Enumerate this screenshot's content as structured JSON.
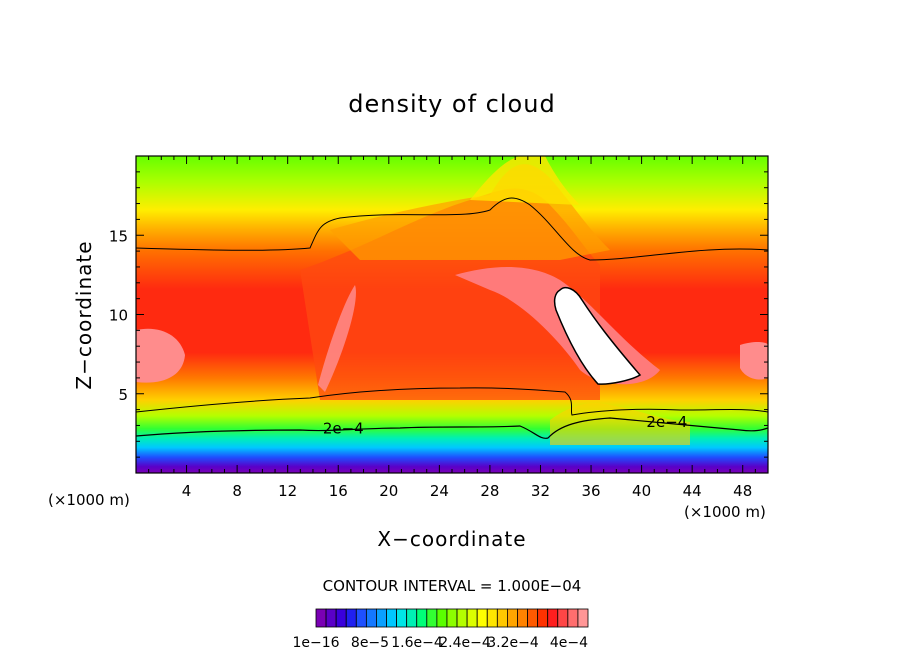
{
  "chart_data": {
    "type": "heatmap",
    "title": "density of cloud",
    "xlabel": "X−coordinate",
    "ylabel": "Z−coordinate",
    "x_unit_left": "(×1000 m)",
    "x_unit_right": "(×1000 m)",
    "xlim": [
      0,
      50
    ],
    "ylim": [
      0,
      20
    ],
    "x_ticks": [
      4,
      8,
      12,
      16,
      20,
      24,
      28,
      32,
      36,
      40,
      44,
      48
    ],
    "y_ticks": [
      5,
      10,
      15
    ],
    "contour_interval_text": "CONTOUR INTERVAL = 1.000E−04",
    "contour_labels": [
      {
        "text": "2e−4",
        "x": 16.4,
        "z": 2.5
      },
      {
        "text": "2e−4",
        "x": 42.0,
        "z": 2.9
      }
    ],
    "colorbar": {
      "colors": [
        "#7a00b4",
        "#5a00c8",
        "#3a00dc",
        "#2020f0",
        "#1e50ff",
        "#1478ff",
        "#0aa0ff",
        "#00c8ff",
        "#00e6e6",
        "#00f0b4",
        "#00ff78",
        "#32ff32",
        "#5aff00",
        "#8cff00",
        "#b4ff00",
        "#dcff00",
        "#ffff00",
        "#ffe600",
        "#ffc800",
        "#ffa500",
        "#ff8200",
        "#ff5a00",
        "#ff3200",
        "#ff1e1e",
        "#ff4646",
        "#ff6e6e",
        "#ff9696"
      ],
      "tick_labels": [
        "1e−16",
        "8e−5",
        "1.6e−4",
        "2.4e−4",
        "3.2e−4",
        "4e−4"
      ]
    }
  }
}
